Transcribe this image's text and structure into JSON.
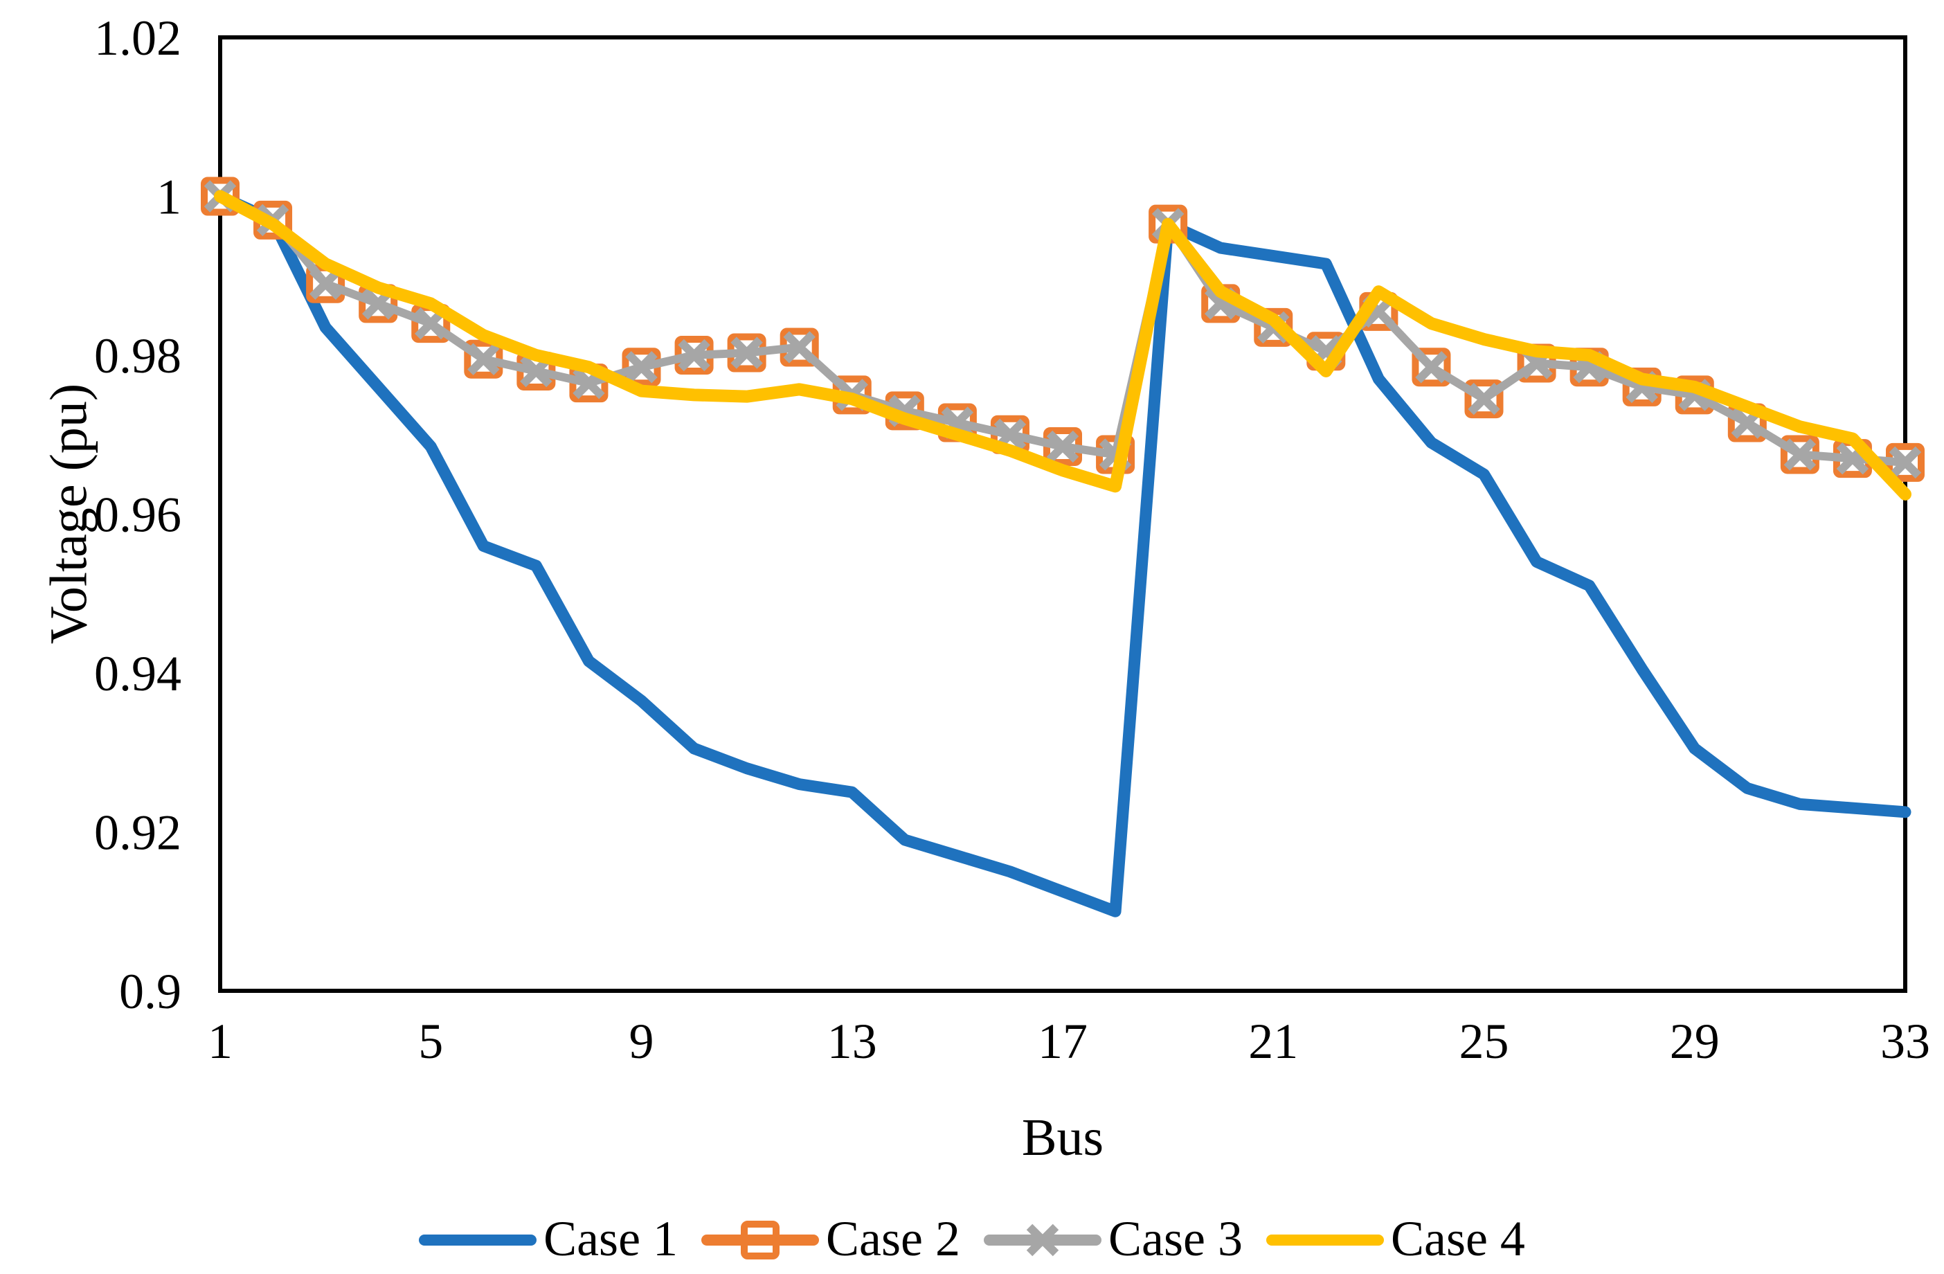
{
  "chart_data": {
    "type": "line",
    "title": "",
    "xlabel": "Bus",
    "ylabel": "Voltage (pu)",
    "x_range": [
      1,
      33
    ],
    "y_range": [
      0.9,
      1.02
    ],
    "x": [
      1,
      2,
      3,
      4,
      5,
      6,
      7,
      8,
      9,
      10,
      11,
      12,
      13,
      14,
      15,
      16,
      17,
      18,
      19,
      20,
      21,
      22,
      23,
      24,
      25,
      26,
      27,
      28,
      29,
      30,
      31,
      32,
      33
    ],
    "x_ticks": [
      1,
      5,
      9,
      13,
      17,
      21,
      25,
      29,
      33
    ],
    "y_ticks": [
      1.02,
      1,
      0.98,
      0.96,
      0.94,
      0.92,
      0.9
    ],
    "y_tick_labels": [
      "1.02",
      "1",
      "0.98",
      "0.96",
      "0.94",
      "0.92",
      "0.9"
    ],
    "grid": false,
    "frame_color": "#000000",
    "legend_position": "bottom",
    "series": [
      {
        "name": "Case 1",
        "color": "#1F72BE",
        "marker": "none",
        "values": [
          1.0,
          0.997,
          0.9835,
          0.976,
          0.9685,
          0.956,
          0.9535,
          0.9415,
          0.9365,
          0.9305,
          0.928,
          0.926,
          0.925,
          0.919,
          0.917,
          0.915,
          0.9125,
          0.91,
          0.9965,
          0.9935,
          0.9925,
          0.9915,
          0.977,
          0.969,
          0.965,
          0.954,
          0.951,
          0.9405,
          0.9305,
          0.9255,
          0.9235,
          0.923,
          0.9225
        ]
      },
      {
        "name": "Case 2",
        "color": "#ED7D31",
        "marker": "square",
        "values": [
          1.0,
          0.997,
          0.989,
          0.9865,
          0.984,
          0.9795,
          0.978,
          0.9765,
          0.9785,
          0.98,
          0.9803,
          0.981,
          0.975,
          0.973,
          0.9715,
          0.97,
          0.9685,
          0.9675,
          0.9965,
          0.9865,
          0.9835,
          0.9805,
          0.9855,
          0.9785,
          0.9745,
          0.979,
          0.9785,
          0.976,
          0.975,
          0.9715,
          0.9675,
          0.967,
          0.9665
        ]
      },
      {
        "name": "Case 3",
        "color": "#A6A6A6",
        "marker": "x",
        "values": [
          1.0,
          0.997,
          0.989,
          0.9865,
          0.984,
          0.9795,
          0.978,
          0.9765,
          0.9785,
          0.98,
          0.9803,
          0.981,
          0.975,
          0.973,
          0.9715,
          0.97,
          0.9685,
          0.9675,
          0.9965,
          0.9865,
          0.9835,
          0.9805,
          0.9855,
          0.9785,
          0.9745,
          0.979,
          0.9785,
          0.976,
          0.975,
          0.9715,
          0.9675,
          0.967,
          0.9665
        ]
      },
      {
        "name": "Case 4",
        "color": "#FFC000",
        "marker": "none",
        "values": [
          1.0,
          0.9965,
          0.9915,
          0.9885,
          0.9865,
          0.9825,
          0.98,
          0.9785,
          0.9755,
          0.975,
          0.9748,
          0.9757,
          0.9745,
          0.972,
          0.97,
          0.968,
          0.9655,
          0.9635,
          0.9965,
          0.988,
          0.9845,
          0.978,
          0.988,
          0.984,
          0.982,
          0.9805,
          0.98,
          0.977,
          0.976,
          0.9735,
          0.971,
          0.9695,
          0.9625
        ]
      }
    ]
  }
}
